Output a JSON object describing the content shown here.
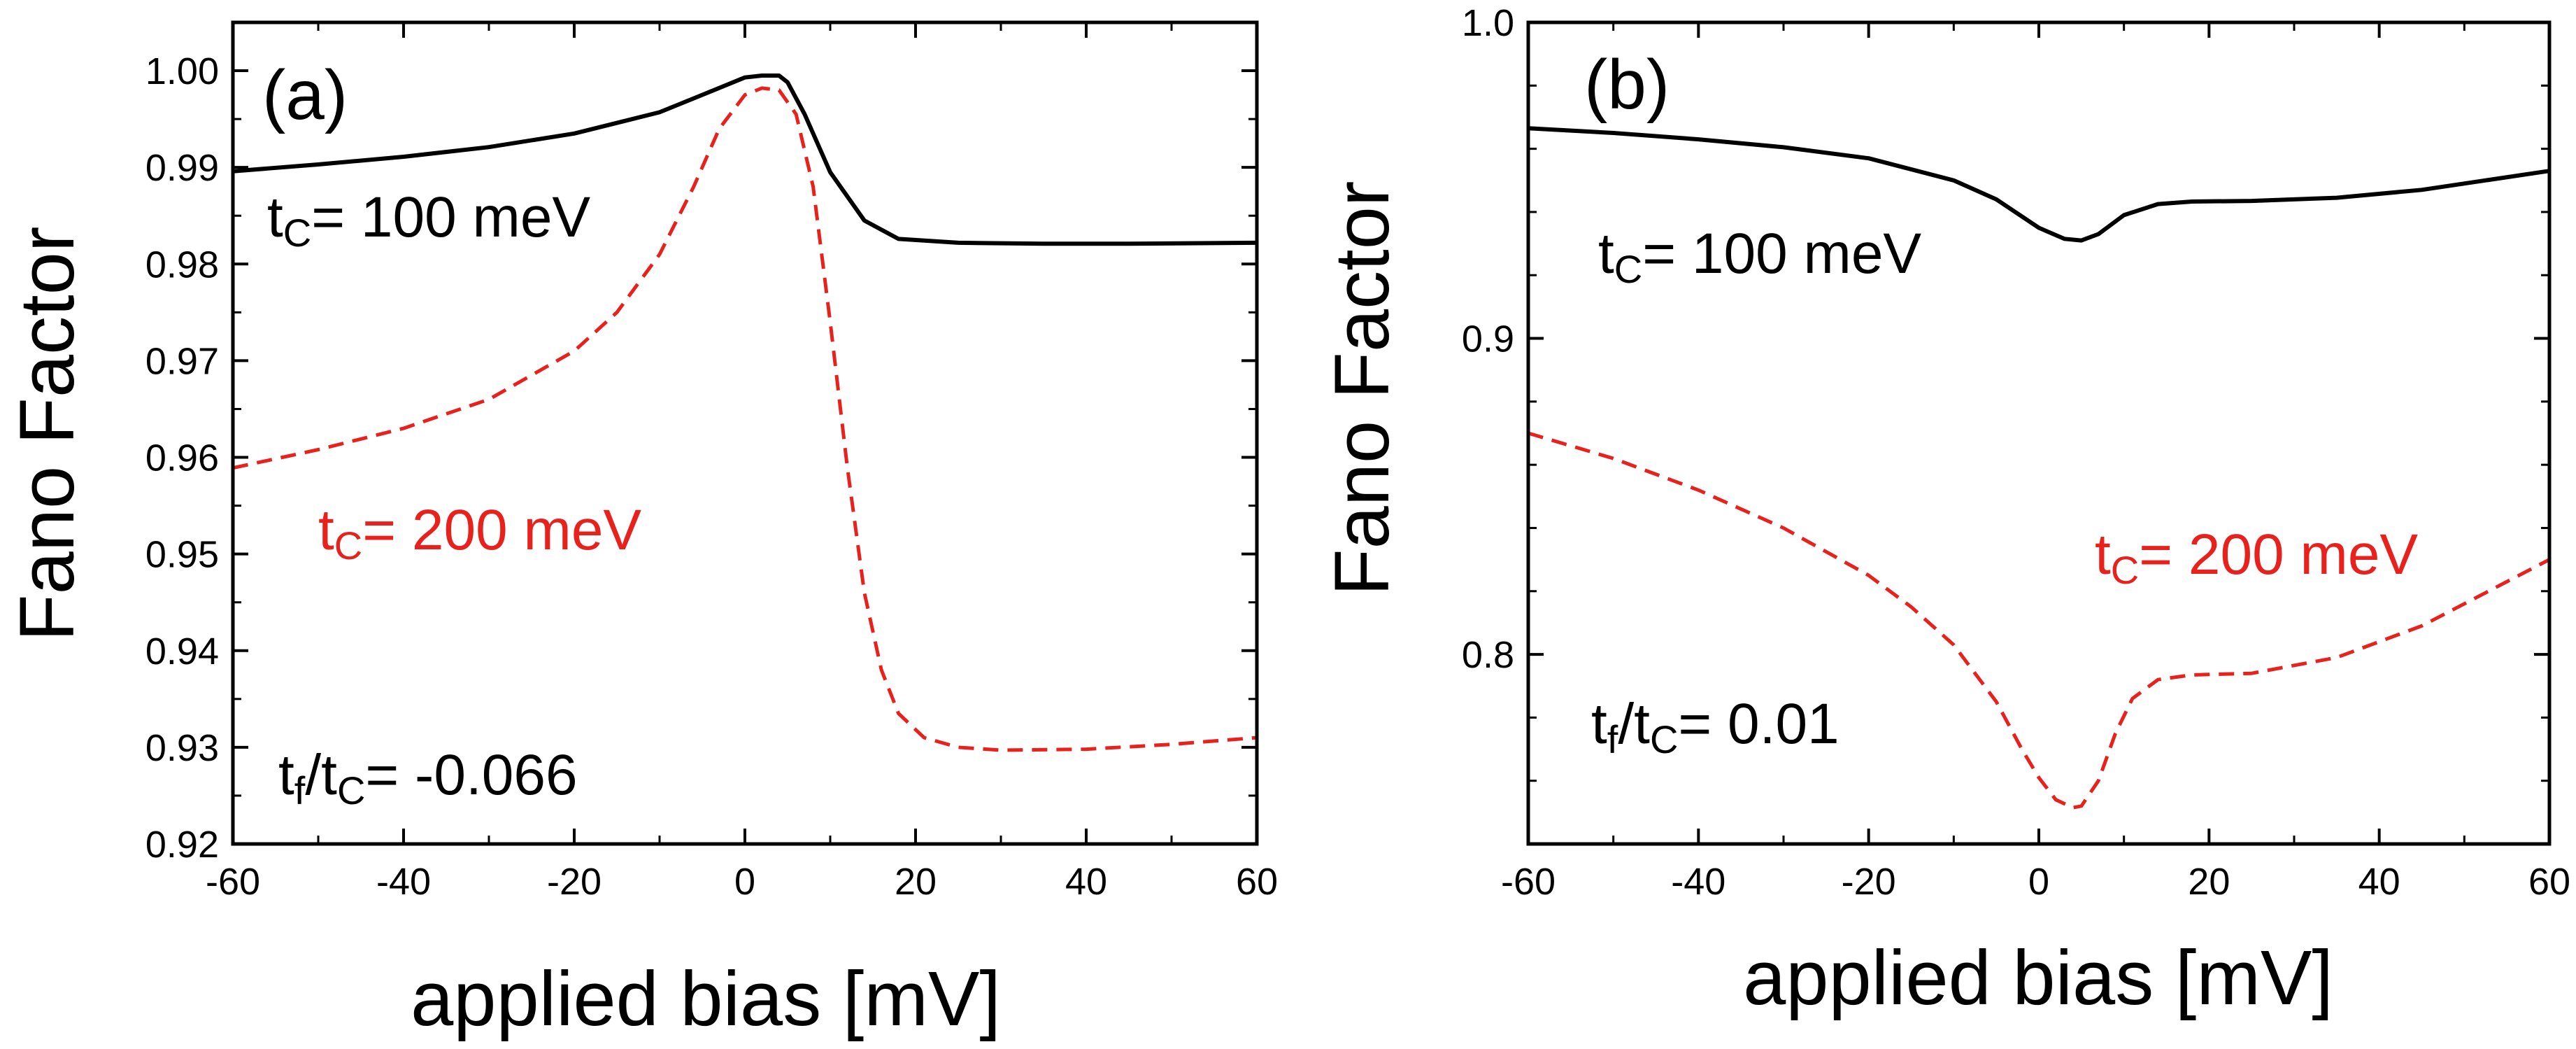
{
  "chart_data": [
    {
      "panel_label": "(a)",
      "type": "line",
      "xlabel": "applied bias [mV]",
      "ylabel": "Fano Factor",
      "xlim": [
        -60,
        60
      ],
      "ylim": [
        0.92,
        1.005
      ],
      "xticks": [
        -60,
        -40,
        -20,
        0,
        20,
        40,
        60
      ],
      "xtick_labels": [
        "-60",
        "-40",
        "-20",
        "0",
        "20",
        "40",
        "60"
      ],
      "yticks": [
        0.92,
        0.93,
        0.94,
        0.95,
        0.96,
        0.97,
        0.98,
        0.99,
        1.0
      ],
      "ytick_labels": [
        "0.92",
        "0.93",
        "0.94",
        "0.95",
        "0.96",
        "0.97",
        "0.98",
        "0.99",
        "1.00"
      ],
      "grid": false,
      "series": [
        {
          "name": "tc= 100 meV",
          "color": "#000000",
          "style": "solid",
          "x": [
            -60,
            -50,
            -40,
            -30,
            -20,
            -10,
            -5,
            0,
            2,
            4,
            5,
            7,
            10,
            14,
            18,
            25,
            35,
            45,
            60
          ],
          "y": [
            0.9896,
            0.9903,
            0.9911,
            0.9921,
            0.9935,
            0.9957,
            0.9975,
            0.9993,
            0.9995,
            0.9995,
            0.9988,
            0.9955,
            0.9895,
            0.9845,
            0.9826,
            0.9822,
            0.9821,
            0.9821,
            0.9822
          ]
        },
        {
          "name": "tc= 200 meV",
          "color": "#e8211c",
          "style": "dashed",
          "x": [
            -60,
            -50,
            -40,
            -30,
            -20,
            -15,
            -10,
            -6,
            -3,
            0,
            2,
            4,
            6,
            8,
            10,
            12,
            14,
            16,
            18,
            21,
            25,
            30,
            40,
            50,
            60
          ],
          "y": [
            0.9589,
            0.9608,
            0.963,
            0.966,
            0.971,
            0.975,
            0.981,
            0.988,
            0.994,
            0.9975,
            0.9982,
            0.998,
            0.9955,
            0.988,
            0.974,
            0.959,
            0.946,
            0.938,
            0.9335,
            0.931,
            0.93,
            0.9297,
            0.9298,
            0.9303,
            0.931
          ]
        }
      ],
      "annotations": [
        {
          "main": "t",
          "sub": "C",
          "rest": "= 100 meV",
          "color": "#000000"
        },
        {
          "main": "t",
          "sub": "C",
          "rest": "= 200 meV",
          "color": "#e8211c"
        },
        {
          "main1": "t",
          "sub1": "f",
          "mid": "/t",
          "sub2": "C",
          "rest": "= -0.066",
          "color": "#000000"
        }
      ]
    },
    {
      "panel_label": "(b)",
      "type": "line",
      "xlabel": "applied bias [mV]",
      "ylabel": "Fano Factor",
      "xlim": [
        -60,
        60
      ],
      "ylim": [
        0.74,
        1.0
      ],
      "xticks": [
        -60,
        -40,
        -20,
        0,
        20,
        40,
        60
      ],
      "xtick_labels": [
        "-60",
        "-40",
        "-20",
        "0",
        "20",
        "40",
        "60"
      ],
      "yticks": [
        0.8,
        0.9,
        1.0
      ],
      "ytick_labels": [
        "0.8",
        "0.9",
        "1.0"
      ],
      "grid": false,
      "series": [
        {
          "name": "tc= 100 meV",
          "color": "#000000",
          "style": "solid",
          "x": [
            -60,
            -50,
            -40,
            -30,
            -20,
            -10,
            -5,
            0,
            3,
            5,
            7,
            10,
            14,
            18,
            25,
            35,
            45,
            60
          ],
          "y": [
            0.9665,
            0.965,
            0.963,
            0.9605,
            0.957,
            0.95,
            0.944,
            0.935,
            0.9315,
            0.931,
            0.933,
            0.939,
            0.9425,
            0.9433,
            0.9435,
            0.9445,
            0.947,
            0.953
          ]
        },
        {
          "name": "tc= 200 meV",
          "color": "#e8211c",
          "style": "dashed",
          "x": [
            -60,
            -50,
            -40,
            -30,
            -20,
            -15,
            -10,
            -5,
            -2,
            0,
            2,
            4,
            5,
            7,
            9,
            11,
            14,
            18,
            25,
            35,
            45,
            60
          ],
          "y": [
            0.87,
            0.862,
            0.852,
            0.84,
            0.825,
            0.815,
            0.803,
            0.785,
            0.77,
            0.761,
            0.754,
            0.7515,
            0.752,
            0.76,
            0.775,
            0.786,
            0.792,
            0.7935,
            0.794,
            0.799,
            0.809,
            0.83
          ]
        }
      ],
      "annotations": [
        {
          "main": "t",
          "sub": "C",
          "rest": "= 100 meV",
          "color": "#000000"
        },
        {
          "main": "t",
          "sub": "C",
          "rest": "= 200 meV",
          "color": "#e8211c"
        },
        {
          "main1": "t",
          "sub1": "f",
          "mid": "/t",
          "sub2": "C",
          "rest": "= 0.01",
          "color": "#000000"
        }
      ]
    }
  ]
}
